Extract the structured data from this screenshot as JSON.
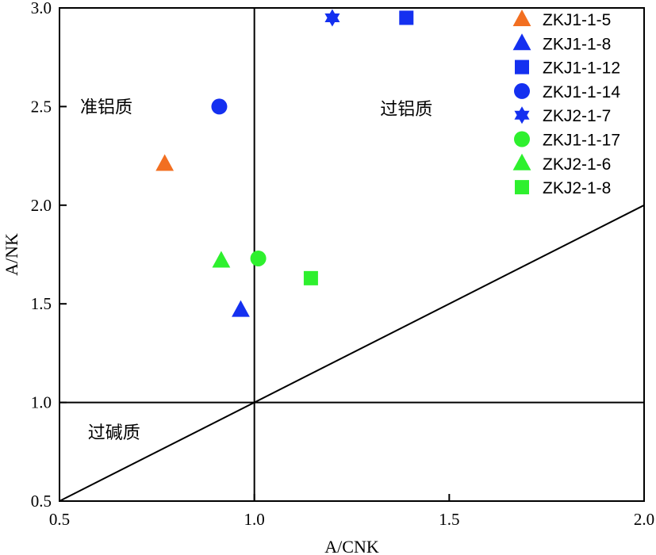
{
  "chart_data": {
    "type": "scatter",
    "title": "",
    "xlabel": "A/CNK",
    "ylabel": "A/NK",
    "xlim": [
      0.5,
      2.0
    ],
    "ylim": [
      0.5,
      3.0
    ],
    "xticks": [
      "0.5",
      "1.0",
      "1.5",
      "2.0"
    ],
    "yticks": [
      "0.5",
      "1.0",
      "1.5",
      "2.0",
      "2.5",
      "3.0"
    ],
    "grid": false,
    "legend_position": "top-right",
    "reference_lines": [
      {
        "name": "x=1.0",
        "points": [
          [
            1.0,
            0.5
          ],
          [
            1.0,
            3.0
          ]
        ]
      },
      {
        "name": "y=1.0",
        "points": [
          [
            0.5,
            1.0
          ],
          [
            2.0,
            1.0
          ]
        ]
      },
      {
        "name": "y=x",
        "points": [
          [
            0.5,
            0.5
          ],
          [
            2.0,
            2.0
          ]
        ]
      }
    ],
    "regions": [
      {
        "label": "准铝质",
        "x": 0.62,
        "y": 2.5
      },
      {
        "label": "过铝质",
        "x": 1.39,
        "y": 2.49
      },
      {
        "label": "过碱质",
        "x": 0.64,
        "y": 0.85
      }
    ],
    "series": [
      {
        "name": "ZKJ1-1-5",
        "marker": "triangle",
        "color": "#f26f21",
        "x": 0.77,
        "y": 2.21
      },
      {
        "name": "ZKJ1-1-8",
        "marker": "triangle",
        "color": "#1430f0",
        "x": 0.965,
        "y": 1.47
      },
      {
        "name": "ZKJ1-1-12",
        "marker": "square",
        "color": "#1430f0",
        "x": 1.39,
        "y": 2.95
      },
      {
        "name": "ZKJ1-1-14",
        "marker": "circle",
        "color": "#1430f0",
        "x": 0.91,
        "y": 2.5
      },
      {
        "name": "ZKJ2-1-7",
        "marker": "star",
        "color": "#1430f0",
        "x": 1.2,
        "y": 2.95
      },
      {
        "name": "ZKJ1-1-17",
        "marker": "circle",
        "color": "#2ef02e",
        "x": 1.01,
        "y": 1.73
      },
      {
        "name": "ZKJ2-1-6",
        "marker": "triangle",
        "color": "#2ef02e",
        "x": 0.915,
        "y": 1.72
      },
      {
        "name": "ZKJ2-1-8",
        "marker": "square",
        "color": "#2ef02e",
        "x": 1.145,
        "y": 1.63
      }
    ]
  }
}
